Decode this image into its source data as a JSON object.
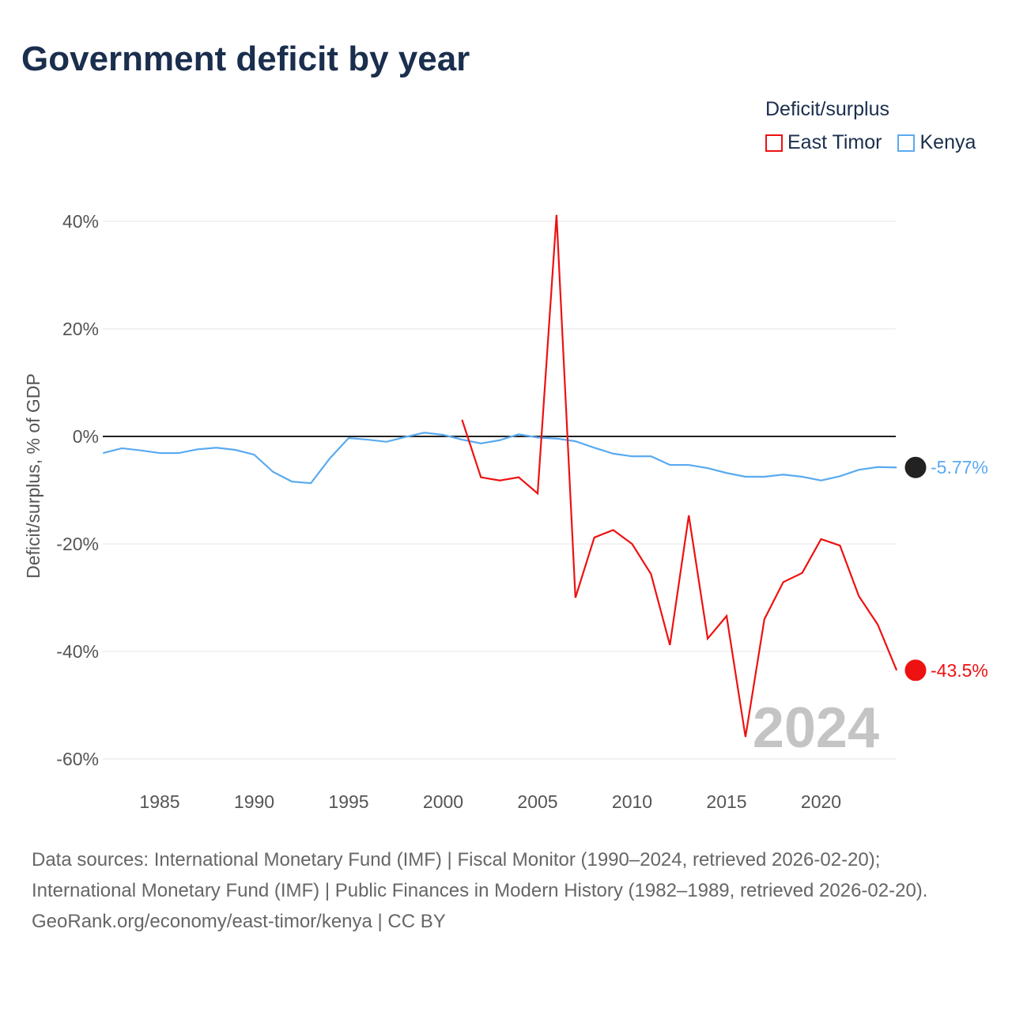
{
  "title": "Government deficit by year",
  "legend": {
    "title": "Deficit/surplus",
    "items": [
      {
        "label": "East Timor",
        "color": "#ee1111"
      },
      {
        "label": "Kenya",
        "color": "#5aaaf0"
      }
    ]
  },
  "watermark_year": "2024",
  "sources": {
    "line1": "Data sources: International Monetary Fund (IMF) | Fiscal Monitor (1990–2024, retrieved 2026-02-20); International Monetary Fund (IMF) | Public Finances in Modern History (1982–1989, retrieved 2026-02-20).",
    "line2": "GeoRank.org/economy/east-timor/kenya | CC BY"
  },
  "chart_data": {
    "type": "line",
    "title": "Government deficit by year",
    "xlabel": "",
    "ylabel": "Deficit/surplus, % of GDP",
    "xlim": [
      1982,
      2024
    ],
    "ylim": [
      -60,
      45
    ],
    "yticks": [
      40,
      20,
      0,
      -20,
      -40,
      -60
    ],
    "ytick_labels": [
      "40%",
      "20%",
      "0%",
      "-20%",
      "-40%",
      "-60%"
    ],
    "xticks": [
      1985,
      1990,
      1995,
      2000,
      2005,
      2010,
      2015,
      2020
    ],
    "xtick_labels": [
      "1985",
      "1990",
      "1995",
      "2000",
      "2005",
      "2010",
      "2015",
      "2020"
    ],
    "series": [
      {
        "name": "Kenya",
        "color": "#5aaaf0",
        "end_label": "-5.77%",
        "start": 1982,
        "values": [
          -3.1,
          -2.2,
          -2.6,
          -3.1,
          -3.1,
          -2.4,
          -2.1,
          -2.5,
          -3.4,
          -6.6,
          -8.4,
          -8.7,
          -4.1,
          -0.3,
          -0.6,
          -1.0,
          -0.1,
          0.7,
          0.3,
          -0.6,
          -1.3,
          -0.7,
          0.4,
          -0.2,
          -0.4,
          -0.9,
          -2.1,
          -3.2,
          -3.7,
          -3.7,
          -5.3,
          -5.3,
          -5.9,
          -6.8,
          -7.5,
          -7.5,
          -7.1,
          -7.5,
          -8.2,
          -7.4,
          -6.2,
          -5.7,
          -5.77
        ]
      },
      {
        "name": "East Timor",
        "color": "#ee1111",
        "end_label": "-43.5%",
        "start": 2001,
        "values": [
          3.1,
          -7.6,
          -8.2,
          -7.6,
          -10.6,
          41.2,
          -30.0,
          -18.8,
          -17.4,
          -20.0,
          -25.6,
          -38.8,
          -14.7,
          -37.6,
          -33.4,
          -55.9,
          -34.0,
          -27.1,
          -25.4,
          -19.1,
          -20.3,
          -29.7,
          -35.0,
          -43.5
        ]
      }
    ]
  }
}
